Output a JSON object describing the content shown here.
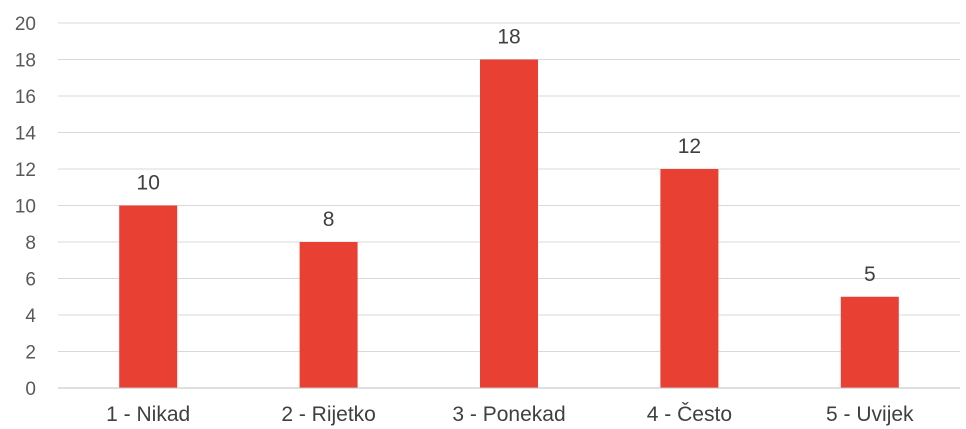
{
  "chart_data": {
    "type": "bar",
    "categories": [
      "1 - Nikad",
      "2 - Rijetko",
      "3 - Ponekad",
      "4 - Često",
      "5 - Uvijek"
    ],
    "values": [
      10,
      8,
      18,
      12,
      5
    ],
    "ylim": [
      0,
      20
    ],
    "yticks": [
      0,
      2,
      4,
      6,
      8,
      10,
      12,
      14,
      16,
      18,
      20
    ],
    "grid": true,
    "data_labels": true,
    "bar_color": "#e84133"
  }
}
